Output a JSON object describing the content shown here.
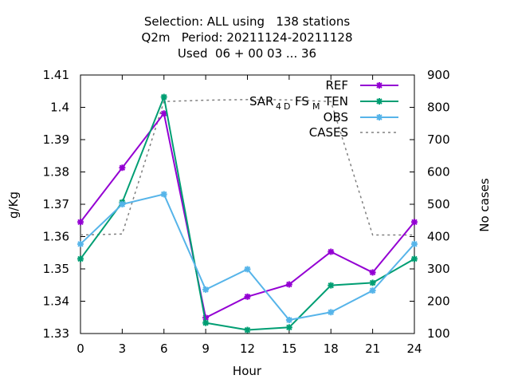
{
  "title_lines": [
    "Selection: ALL using   138 stations",
    "Q2m   Period: 20211124-20211128",
    "Used  06 + 00 03 ... 36"
  ],
  "chart_data": {
    "type": "line",
    "xlabel": "Hour",
    "ylabel": "g/Kg",
    "y2label": "No cases",
    "x": [
      0,
      3,
      6,
      9,
      12,
      15,
      18,
      21,
      24
    ],
    "xlim": [
      0,
      24
    ],
    "ylim": [
      1.33,
      1.41
    ],
    "y2lim": [
      100,
      900
    ],
    "x_ticks": [
      "0",
      "3",
      "6",
      "9",
      "12",
      "15",
      "18",
      "21",
      "24"
    ],
    "y_ticks": [
      "1.33",
      "1.34",
      "1.35",
      "1.36",
      "1.37",
      "1.38",
      "1.39",
      "1.4",
      "1.41"
    ],
    "y2_ticks": [
      "100",
      "200",
      "300",
      "400",
      "500",
      "600",
      "700",
      "800",
      "900"
    ],
    "legend_position": "top-right",
    "series": [
      {
        "name": "REF",
        "axis": "y",
        "color": "#9400d3",
        "values": [
          1.3645,
          1.3813,
          1.3981,
          1.3349,
          1.3414,
          1.3452,
          1.3553,
          1.3489,
          1.3645
        ]
      },
      {
        "name": "SAR_4D_FS_M_TEN",
        "axis": "y",
        "color": "#009e73",
        "values": [
          1.3531,
          1.3706,
          1.4032,
          1.3333,
          1.3311,
          1.3319,
          1.3449,
          1.3457,
          1.3531
        ]
      },
      {
        "name": "OBS",
        "axis": "y",
        "color": "#56b4e9",
        "values": [
          1.3577,
          1.37,
          1.3731,
          1.3436,
          1.3499,
          1.3342,
          1.3366,
          1.3433,
          1.3577
        ]
      },
      {
        "name": "CASES",
        "axis": "y2",
        "color": "#808080",
        "dashed": true,
        "values": [
          405,
          408,
          818,
          822,
          824,
          823,
          818,
          405,
          405
        ]
      }
    ],
    "legend_labels": {
      "REF": "REF",
      "TEN": "TEN",
      "SAR": "SAR",
      "sub4": "4",
      "D": "D",
      "FS": "FS",
      "M": "M",
      "OBS": "OBS",
      "CASES": "CASES"
    }
  }
}
